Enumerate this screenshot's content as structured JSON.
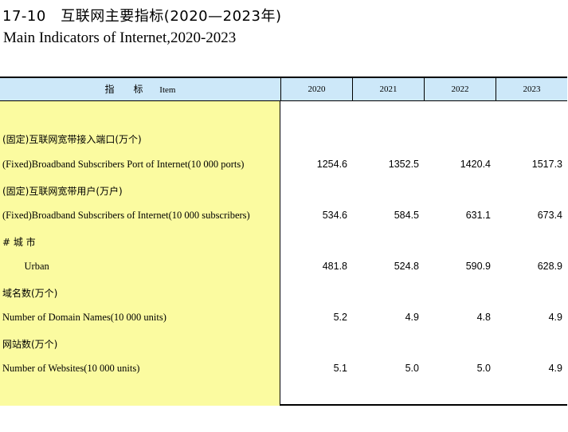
{
  "title_cn": "17-10　互联网主要指标(2020—2023年)",
  "title_en": "Main Indicators of Internet,2020-2023",
  "header": {
    "indicator_cn": "指　标",
    "indicator_en": "Item",
    "years": [
      "2020",
      "2021",
      "2022",
      "2023"
    ]
  },
  "rows": [
    {
      "cn": "(固定)互联网宽带接入端口(万个)",
      "en": "(Fixed)Broadband Subscribers Port of Internet(10 000 ports)",
      "values": [
        "1254.6",
        "1352.5",
        "1420.4",
        "1517.3"
      ]
    },
    {
      "cn": "(固定)互联网宽带用户(万户)",
      "en": "(Fixed)Broadband Subscribers of Internet(10 000 subscribers)",
      "values": [
        "534.6",
        "584.5",
        "631.1",
        "673.4"
      ]
    },
    {
      "cn": "# 城 市",
      "en": "    Urban",
      "values": [
        "481.8",
        "524.8",
        "590.9",
        "628.9"
      ]
    },
    {
      "cn": "域名数(万个)",
      "en": "Number of Domain Names(10 000 units)",
      "values": [
        "5.2",
        "4.9",
        "4.8",
        "4.9"
      ]
    },
    {
      "cn": "网站数(万个)",
      "en": "Number of Websites(10 000 units)",
      "values": [
        "5.1",
        "5.0",
        "5.0",
        "4.9"
      ]
    }
  ]
}
